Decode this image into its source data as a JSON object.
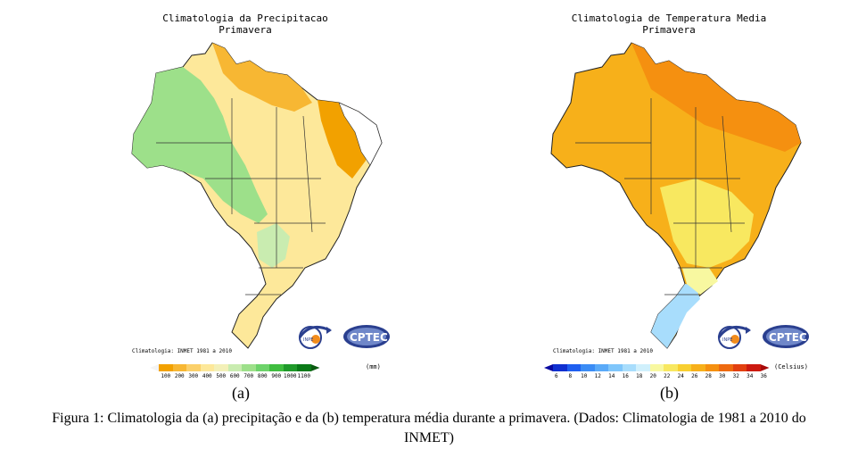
{
  "figure": {
    "label_a": "(a)",
    "label_b": "(b)",
    "caption": "Figura 1: Climatologia da (a) precipitação e da (b) temperatura média durante a primavera. (Dados: Climatologia de 1981 a 2010 do INMET)"
  },
  "map_a": {
    "title_line1": "Climatologia da Precipitacao",
    "title_line2": "Primavera",
    "source": "Climatologia: INMET 1981 a 2010",
    "unit": "(mm)",
    "ticks": [
      "100",
      "200",
      "300",
      "400",
      "500",
      "600",
      "700",
      "800",
      "900",
      "1000",
      "1100"
    ],
    "colors": [
      "#f4f4f4",
      "#f2a100",
      "#f7b733",
      "#fbd06a",
      "#fde89a",
      "#f3f0b8",
      "#c9ecb0",
      "#9de08a",
      "#6dd36a",
      "#3fbd3f",
      "#1f9a2a",
      "#0a7a18"
    ],
    "logo_left": "INPE",
    "logo_right": "CPTEC"
  },
  "map_b": {
    "title_line1": "Climatologia de Temperatura Media",
    "title_line2": "Primavera",
    "source": "Climatologia: INMET 1981 a 2010",
    "unit": "(Celsius)",
    "ticks": [
      "6",
      "8",
      "10",
      "12",
      "14",
      "16",
      "18",
      "20",
      "22",
      "24",
      "26",
      "28",
      "30",
      "32",
      "34",
      "36"
    ],
    "colors": [
      "#0a0aa0",
      "#1030d0",
      "#1f5ff0",
      "#3b8cf5",
      "#5aaaf8",
      "#7fc6fb",
      "#a8ddfc",
      "#d0f0fc",
      "#f8f8a0",
      "#f8e860",
      "#f8cf30",
      "#f7b01a",
      "#f59010",
      "#ee6a10",
      "#e24010",
      "#cc1a10",
      "#a80a0a"
    ],
    "logo_left": "INPE",
    "logo_right": "CPTEC"
  }
}
